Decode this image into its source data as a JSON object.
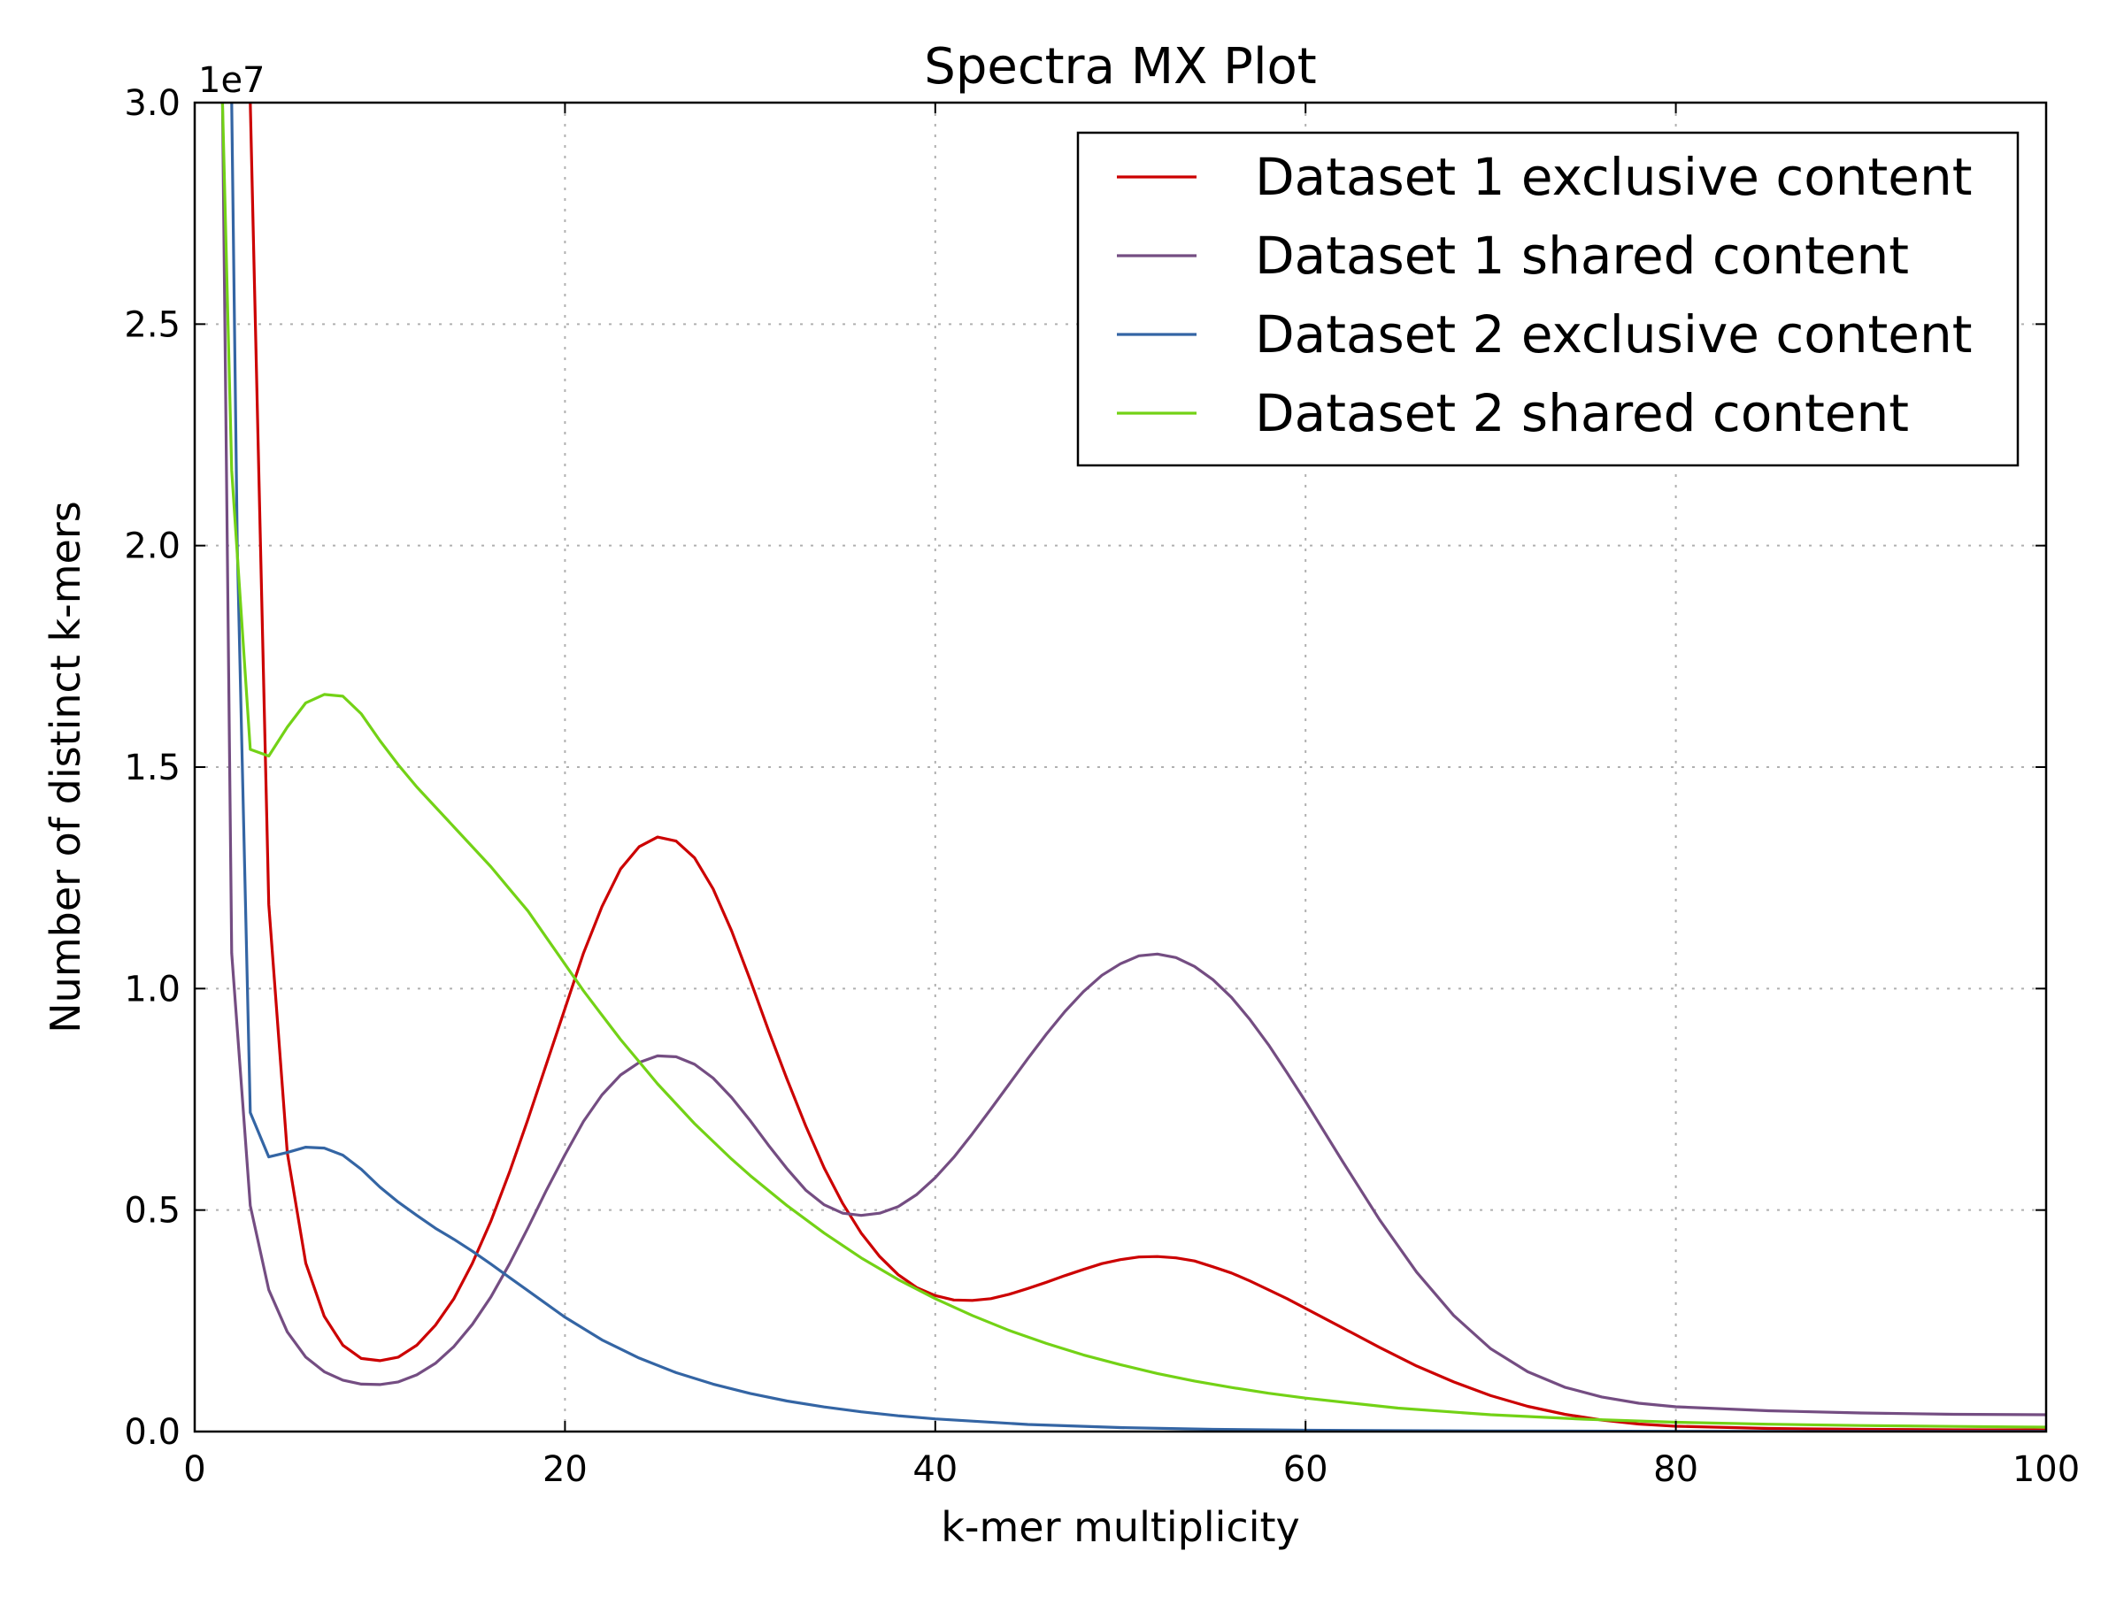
{
  "chart_data": {
    "type": "line",
    "title": "Spectra MX Plot",
    "xlabel": "k-mer multiplicity",
    "ylabel": "Number of distinct k-mers",
    "y_offset_text": "1e7",
    "xlim": [
      0,
      100
    ],
    "ylim": [
      0,
      30000000
    ],
    "x_ticks": [
      0,
      20,
      40,
      60,
      80,
      100
    ],
    "x_tick_labels": [
      "0",
      "20",
      "40",
      "60",
      "80",
      "100"
    ],
    "y_ticks": [
      0,
      5000000,
      10000000,
      15000000,
      20000000,
      25000000,
      30000000
    ],
    "y_tick_labels": [
      "0.0",
      "0.5",
      "1.0",
      "1.5",
      "2.0",
      "2.5",
      "3.0"
    ],
    "grid": true,
    "legend_position": "top-right",
    "series": [
      {
        "name": "Dataset 1 exclusive content",
        "color": "#cc0000",
        "points": [
          [
            3,
            30000000
          ],
          [
            4,
            11900000
          ],
          [
            5,
            6300000
          ],
          [
            6,
            3800000
          ],
          [
            7,
            2600000
          ],
          [
            8,
            1950000
          ],
          [
            9,
            1650000
          ],
          [
            10,
            1600000
          ],
          [
            11,
            1680000
          ],
          [
            12,
            1950000
          ],
          [
            13,
            2400000
          ],
          [
            14,
            3000000
          ],
          [
            15,
            3800000
          ],
          [
            16,
            4750000
          ],
          [
            17,
            5850000
          ],
          [
            18,
            7050000
          ],
          [
            19,
            8300000
          ],
          [
            20,
            9550000
          ],
          [
            21,
            10800000
          ],
          [
            22,
            11850000
          ],
          [
            23,
            12700000
          ],
          [
            24,
            13200000
          ],
          [
            25,
            13420000
          ],
          [
            26,
            13330000
          ],
          [
            27,
            12950000
          ],
          [
            28,
            12250000
          ],
          [
            29,
            11300000
          ],
          [
            30,
            10200000
          ],
          [
            31,
            9050000
          ],
          [
            32,
            7950000
          ],
          [
            33,
            6900000
          ],
          [
            34,
            5950000
          ],
          [
            35,
            5150000
          ],
          [
            36,
            4480000
          ],
          [
            37,
            3950000
          ],
          [
            38,
            3540000
          ],
          [
            39,
            3250000
          ],
          [
            40,
            3070000
          ],
          [
            41,
            2970000
          ],
          [
            42,
            2960000
          ],
          [
            43,
            3000000
          ],
          [
            44,
            3100000
          ],
          [
            45,
            3230000
          ],
          [
            46,
            3370000
          ],
          [
            47,
            3520000
          ],
          [
            48,
            3660000
          ],
          [
            49,
            3790000
          ],
          [
            50,
            3880000
          ],
          [
            51,
            3940000
          ],
          [
            52,
            3950000
          ],
          [
            53,
            3920000
          ],
          [
            54,
            3850000
          ],
          [
            55,
            3720000
          ],
          [
            56,
            3580000
          ],
          [
            57,
            3400000
          ],
          [
            58,
            3200000
          ],
          [
            59,
            3000000
          ],
          [
            60,
            2780000
          ],
          [
            62,
            2340000
          ],
          [
            64,
            1900000
          ],
          [
            66,
            1480000
          ],
          [
            68,
            1120000
          ],
          [
            70,
            810000
          ],
          [
            72,
            570000
          ],
          [
            74,
            390000
          ],
          [
            76,
            260000
          ],
          [
            78,
            170000
          ],
          [
            80,
            120000
          ],
          [
            85,
            70000
          ],
          [
            90,
            50000
          ],
          [
            95,
            40000
          ],
          [
            100,
            35000
          ]
        ]
      },
      {
        "name": "Dataset 1 shared content",
        "color": "#744d82",
        "points": [
          [
            1.5,
            30000000
          ],
          [
            2,
            10800000
          ],
          [
            3,
            5100000
          ],
          [
            4,
            3200000
          ],
          [
            5,
            2250000
          ],
          [
            6,
            1680000
          ],
          [
            7,
            1350000
          ],
          [
            8,
            1160000
          ],
          [
            9,
            1070000
          ],
          [
            10,
            1060000
          ],
          [
            11,
            1120000
          ],
          [
            12,
            1280000
          ],
          [
            13,
            1540000
          ],
          [
            14,
            1920000
          ],
          [
            15,
            2420000
          ],
          [
            16,
            3040000
          ],
          [
            17,
            3780000
          ],
          [
            18,
            4600000
          ],
          [
            19,
            5450000
          ],
          [
            20,
            6250000
          ],
          [
            21,
            7000000
          ],
          [
            22,
            7600000
          ],
          [
            23,
            8050000
          ],
          [
            24,
            8330000
          ],
          [
            25,
            8480000
          ],
          [
            26,
            8460000
          ],
          [
            27,
            8290000
          ],
          [
            28,
            7980000
          ],
          [
            29,
            7540000
          ],
          [
            30,
            7020000
          ],
          [
            31,
            6460000
          ],
          [
            32,
            5930000
          ],
          [
            33,
            5450000
          ],
          [
            34,
            5120000
          ],
          [
            35,
            4930000
          ],
          [
            36,
            4880000
          ],
          [
            37,
            4930000
          ],
          [
            38,
            5080000
          ],
          [
            39,
            5350000
          ],
          [
            40,
            5730000
          ],
          [
            41,
            6190000
          ],
          [
            42,
            6720000
          ],
          [
            43,
            7280000
          ],
          [
            44,
            7850000
          ],
          [
            45,
            8420000
          ],
          [
            46,
            8970000
          ],
          [
            47,
            9480000
          ],
          [
            48,
            9930000
          ],
          [
            49,
            10300000
          ],
          [
            50,
            10560000
          ],
          [
            51,
            10740000
          ],
          [
            52,
            10780000
          ],
          [
            53,
            10700000
          ],
          [
            54,
            10500000
          ],
          [
            55,
            10200000
          ],
          [
            56,
            9800000
          ],
          [
            57,
            9300000
          ],
          [
            58,
            8730000
          ],
          [
            59,
            8100000
          ],
          [
            60,
            7450000
          ],
          [
            62,
            6100000
          ],
          [
            64,
            4780000
          ],
          [
            66,
            3600000
          ],
          [
            68,
            2620000
          ],
          [
            70,
            1870000
          ],
          [
            72,
            1350000
          ],
          [
            74,
            1000000
          ],
          [
            76,
            780000
          ],
          [
            78,
            640000
          ],
          [
            80,
            560000
          ],
          [
            85,
            470000
          ],
          [
            90,
            420000
          ],
          [
            95,
            390000
          ],
          [
            100,
            380000
          ]
        ]
      },
      {
        "name": "Dataset 2 exclusive content",
        "color": "#3465a4",
        "points": [
          [
            2,
            30000000
          ],
          [
            2.3,
            20000000
          ],
          [
            3,
            7200000
          ],
          [
            4,
            6200000
          ],
          [
            5,
            6300000
          ],
          [
            6,
            6420000
          ],
          [
            7,
            6400000
          ],
          [
            8,
            6240000
          ],
          [
            9,
            5920000
          ],
          [
            10,
            5520000
          ],
          [
            11,
            5180000
          ],
          [
            12,
            4880000
          ],
          [
            13,
            4590000
          ],
          [
            14,
            4340000
          ],
          [
            15,
            4070000
          ],
          [
            16,
            3780000
          ],
          [
            17,
            3480000
          ],
          [
            18,
            3180000
          ],
          [
            19,
            2880000
          ],
          [
            20,
            2580000
          ],
          [
            22,
            2070000
          ],
          [
            24,
            1660000
          ],
          [
            26,
            1330000
          ],
          [
            28,
            1070000
          ],
          [
            30,
            860000
          ],
          [
            32,
            690000
          ],
          [
            34,
            555000
          ],
          [
            36,
            445000
          ],
          [
            38,
            355000
          ],
          [
            40,
            285000
          ],
          [
            45,
            160000
          ],
          [
            50,
            90000
          ],
          [
            55,
            50000
          ],
          [
            60,
            30000
          ],
          [
            70,
            12000
          ],
          [
            80,
            5000
          ],
          [
            90,
            2000
          ],
          [
            100,
            1000
          ]
        ]
      },
      {
        "name": "Dataset 2 shared content",
        "color": "#73d216",
        "points": [
          [
            1.5,
            30000000
          ],
          [
            2,
            21700000
          ],
          [
            3,
            15400000
          ],
          [
            4,
            15250000
          ],
          [
            5,
            15900000
          ],
          [
            6,
            16450000
          ],
          [
            7,
            16640000
          ],
          [
            8,
            16600000
          ],
          [
            9,
            16200000
          ],
          [
            10,
            15600000
          ],
          [
            11,
            15050000
          ],
          [
            12,
            14550000
          ],
          [
            13,
            14100000
          ],
          [
            14,
            13650000
          ],
          [
            15,
            13200000
          ],
          [
            16,
            12750000
          ],
          [
            17,
            12250000
          ],
          [
            18,
            11750000
          ],
          [
            19,
            11150000
          ],
          [
            20,
            10550000
          ],
          [
            21,
            9950000
          ],
          [
            22,
            9400000
          ],
          [
            23,
            8850000
          ],
          [
            24,
            8350000
          ],
          [
            25,
            7850000
          ],
          [
            26,
            7400000
          ],
          [
            27,
            6950000
          ],
          [
            28,
            6550000
          ],
          [
            29,
            6150000
          ],
          [
            30,
            5780000
          ],
          [
            32,
            5100000
          ],
          [
            34,
            4480000
          ],
          [
            36,
            3920000
          ],
          [
            38,
            3430000
          ],
          [
            40,
            3000000
          ],
          [
            42,
            2620000
          ],
          [
            44,
            2280000
          ],
          [
            46,
            1990000
          ],
          [
            48,
            1730000
          ],
          [
            50,
            1510000
          ],
          [
            52,
            1310000
          ],
          [
            54,
            1140000
          ],
          [
            56,
            995000
          ],
          [
            58,
            865000
          ],
          [
            60,
            755000
          ],
          [
            65,
            530000
          ],
          [
            70,
            380000
          ],
          [
            75,
            280000
          ],
          [
            80,
            210000
          ],
          [
            85,
            165000
          ],
          [
            90,
            135000
          ],
          [
            95,
            115000
          ],
          [
            100,
            100000
          ]
        ]
      }
    ]
  }
}
